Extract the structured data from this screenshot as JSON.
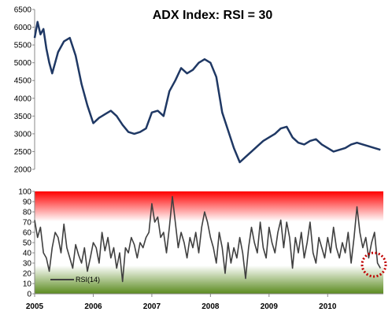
{
  "chart_data": [
    {
      "type": "line",
      "title": "ADX Index: RSI = 30",
      "xlabel": "",
      "ylabel": "",
      "ylim": [
        2000,
        6500
      ],
      "yticks": [
        2000,
        2500,
        3000,
        3500,
        4000,
        4500,
        5000,
        5500,
        6000,
        6500
      ],
      "series": [
        {
          "color": "#1f3864",
          "x": [
            2005.0,
            2005.05,
            2005.1,
            2005.15,
            2005.2,
            2005.25,
            2005.3,
            2005.4,
            2005.5,
            2005.6,
            2005.7,
            2005.8,
            2005.9,
            2006.0,
            2006.1,
            2006.2,
            2006.3,
            2006.4,
            2006.5,
            2006.6,
            2006.7,
            2006.8,
            2006.9,
            2007.0,
            2007.1,
            2007.2,
            2007.3,
            2007.4,
            2007.5,
            2007.6,
            2007.7,
            2007.8,
            2007.9,
            2008.0,
            2008.1,
            2008.2,
            2008.3,
            2008.4,
            2008.5,
            2008.6,
            2008.7,
            2008.8,
            2008.9,
            2009.0,
            2009.1,
            2009.2,
            2009.3,
            2009.4,
            2009.5,
            2009.6,
            2009.7,
            2009.8,
            2009.9,
            2010.0,
            2010.1,
            2010.2,
            2010.3,
            2010.4,
            2010.5,
            2010.6,
            2010.7,
            2010.8,
            2010.9
          ],
          "values": [
            5700,
            6150,
            5800,
            5950,
            5400,
            5000,
            4700,
            5300,
            5600,
            5700,
            5200,
            4400,
            3800,
            3300,
            3450,
            3550,
            3650,
            3500,
            3250,
            3050,
            3000,
            3050,
            3150,
            3600,
            3650,
            3500,
            4200,
            4500,
            4850,
            4700,
            4800,
            5000,
            5100,
            5000,
            4600,
            3600,
            3100,
            2600,
            2200,
            2350,
            2500,
            2650,
            2800,
            2900,
            3000,
            3150,
            3200,
            2900,
            2750,
            2700,
            2800,
            2850,
            2700,
            2600,
            2500,
            2550,
            2600,
            2700,
            2750,
            2700,
            2650,
            2600,
            2550
          ]
        }
      ]
    },
    {
      "type": "line",
      "title": "",
      "xlabel": "",
      "ylabel": "",
      "ylim": [
        0,
        100
      ],
      "yticks": [
        0,
        10,
        20,
        30,
        40,
        50,
        60,
        70,
        80,
        90,
        100
      ],
      "xticks": [
        "2005",
        "2006",
        "2007",
        "2008",
        "2009",
        "2010"
      ],
      "xlim": [
        2005.0,
        2010.95
      ],
      "legend": "bottom-left",
      "bands": {
        "top_color": "#ff0000",
        "bottom_color": "#5a8a1e",
        "neutral_color": "#ffffff"
      },
      "highlight_color": "#c00000",
      "series": [
        {
          "name": "RSI(14)",
          "color": "#404040",
          "x": [
            2005.0,
            2005.05,
            2005.1,
            2005.15,
            2005.2,
            2005.25,
            2005.3,
            2005.35,
            2005.4,
            2005.45,
            2005.5,
            2005.55,
            2005.6,
            2005.65,
            2005.7,
            2005.75,
            2005.8,
            2005.85,
            2005.9,
            2005.95,
            2006.0,
            2006.05,
            2006.1,
            2006.15,
            2006.2,
            2006.25,
            2006.3,
            2006.35,
            2006.4,
            2006.45,
            2006.5,
            2006.55,
            2006.6,
            2006.65,
            2006.7,
            2006.75,
            2006.8,
            2006.85,
            2006.9,
            2006.95,
            2007.0,
            2007.05,
            2007.1,
            2007.15,
            2007.2,
            2007.25,
            2007.3,
            2007.35,
            2007.4,
            2007.45,
            2007.5,
            2007.55,
            2007.6,
            2007.65,
            2007.7,
            2007.75,
            2007.8,
            2007.85,
            2007.9,
            2007.95,
            2008.0,
            2008.05,
            2008.1,
            2008.15,
            2008.2,
            2008.25,
            2008.3,
            2008.35,
            2008.4,
            2008.45,
            2008.5,
            2008.55,
            2008.6,
            2008.65,
            2008.7,
            2008.75,
            2008.8,
            2008.85,
            2008.9,
            2008.95,
            2009.0,
            2009.05,
            2009.1,
            2009.15,
            2009.2,
            2009.25,
            2009.3,
            2009.35,
            2009.4,
            2009.45,
            2009.5,
            2009.55,
            2009.6,
            2009.65,
            2009.7,
            2009.75,
            2009.8,
            2009.85,
            2009.9,
            2009.95,
            2010.0,
            2010.05,
            2010.1,
            2010.15,
            2010.2,
            2010.25,
            2010.3,
            2010.35,
            2010.4,
            2010.45,
            2010.5,
            2010.55,
            2010.6,
            2010.65,
            2010.7,
            2010.75,
            2010.8,
            2010.85,
            2010.9
          ],
          "values": [
            72,
            55,
            65,
            40,
            35,
            22,
            45,
            60,
            55,
            40,
            68,
            45,
            35,
            25,
            48,
            38,
            30,
            45,
            22,
            35,
            50,
            45,
            30,
            60,
            42,
            55,
            35,
            45,
            25,
            40,
            12,
            45,
            40,
            55,
            48,
            35,
            50,
            45,
            55,
            60,
            88,
            70,
            75,
            55,
            60,
            40,
            65,
            95,
            70,
            45,
            60,
            50,
            35,
            55,
            45,
            60,
            40,
            65,
            80,
            70,
            55,
            45,
            30,
            60,
            45,
            20,
            50,
            30,
            45,
            35,
            55,
            40,
            15,
            45,
            65,
            50,
            40,
            70,
            45,
            35,
            65,
            50,
            40,
            60,
            72,
            45,
            70,
            55,
            25,
            55,
            40,
            60,
            35,
            50,
            70,
            40,
            30,
            55,
            45,
            35,
            55,
            40,
            65,
            45,
            35,
            50,
            40,
            60,
            30,
            55,
            85,
            60,
            45,
            55,
            35,
            50,
            60,
            30,
            25
          ]
        }
      ]
    }
  ]
}
